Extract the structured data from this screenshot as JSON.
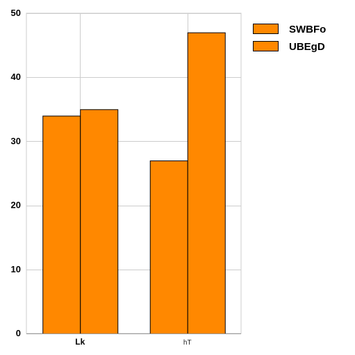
{
  "chart_data": {
    "type": "bar",
    "categories": [
      "Lk",
      "hT"
    ],
    "series": [
      {
        "name": "SWBFo",
        "values": [
          34,
          35
        ]
      },
      {
        "name": "UBEgD",
        "values": [
          27,
          47
        ]
      }
    ],
    "ylim": [
      0,
      50
    ],
    "yticks": [
      0,
      10,
      20,
      30,
      40,
      50
    ],
    "grid": true,
    "legend_position": "top-right",
    "bar_color": "#ff8800",
    "bar_stroke": "#000000",
    "grid_color": "#cccccc"
  }
}
